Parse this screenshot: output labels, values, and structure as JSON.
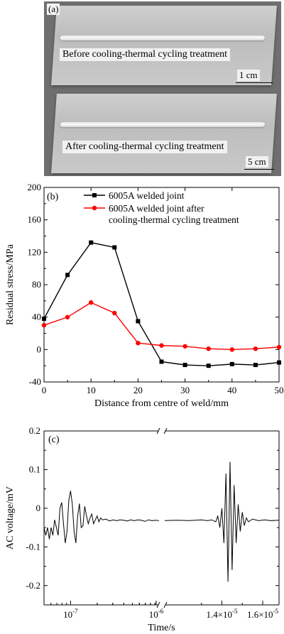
{
  "panel_a": {
    "label": "(a)",
    "top_caption": "Before cooling-thermal cycling treatment",
    "top_scale": "1 cm",
    "bottom_caption": "After cooling-thermal cycling treatment",
    "bottom_scale": "5 cm"
  },
  "chart_data": [
    {
      "type": "line",
      "panel_label": "(b)",
      "xlabel": "Distance from centre of weld/mm",
      "ylabel": "Residual stress/MPa",
      "xlim": [
        0,
        50
      ],
      "ylim": [
        -40,
        200
      ],
      "x_ticks": [
        0,
        10,
        20,
        30,
        40,
        50
      ],
      "y_ticks": [
        -40,
        0,
        40,
        80,
        120,
        160,
        200
      ],
      "legend_position": "top-right",
      "grid": false,
      "series": [
        {
          "name": "6005A welded joint",
          "color": "#000000",
          "marker": "square",
          "x": [
            0,
            5,
            10,
            15,
            20,
            25,
            30,
            35,
            40,
            45,
            50
          ],
          "y": [
            38,
            92,
            132,
            126,
            35,
            -15,
            -19,
            -20,
            -18,
            -19,
            -16
          ]
        },
        {
          "name": "6005A welded joint after cooling-thermal cycling treatment",
          "legend_lines": [
            "6005A welded joint after",
            "cooling-thermal cycling treatment"
          ],
          "color": "#ff0000",
          "marker": "circle",
          "x": [
            0,
            5,
            10,
            15,
            20,
            25,
            30,
            35,
            40,
            45,
            50
          ],
          "y": [
            30,
            40,
            58,
            45,
            8,
            5,
            4,
            1,
            0,
            1,
            3
          ]
        }
      ]
    },
    {
      "type": "line",
      "panel_label": "(c)",
      "xlabel": "Time/s",
      "ylabel": "AC voltage/mV",
      "ylim": [
        -0.25,
        0.2
      ],
      "y_ticks": [
        -0.2,
        -0.1,
        0,
        0.1,
        0.2
      ],
      "y_tick_labels": [
        "-0.2",
        "-0.1",
        "0",
        "0.1",
        "0.2"
      ],
      "broken_x_axis": true,
      "x_tick_labels": [
        {
          "base": "10",
          "exp": "-7"
        },
        {
          "base": "10",
          "exp": "-6"
        },
        {
          "base": "1.4×10",
          "exp": "-5"
        },
        {
          "base": "1.6×10",
          "exp": "-5"
        }
      ],
      "segment_1_log_exponent_range": [
        -7.3,
        -6.0
      ],
      "segment_2_range": [
        1.12e-05,
        1.68e-05
      ],
      "waveform_1": [
        [
          -7.3,
          -0.05
        ],
        [
          -7.28,
          -0.07
        ],
        [
          -7.26,
          -0.05
        ],
        [
          -7.24,
          -0.08
        ],
        [
          -7.22,
          -0.05
        ],
        [
          -7.2,
          -0.07
        ],
        [
          -7.18,
          -0.03
        ],
        [
          -7.16,
          -0.05
        ],
        [
          -7.14,
          -0.07
        ],
        [
          -7.12,
          0.0
        ],
        [
          -7.1,
          0.015
        ],
        [
          -7.08,
          -0.04
        ],
        [
          -7.06,
          -0.09
        ],
        [
          -7.04,
          -0.06
        ],
        [
          -7.02,
          0.02
        ],
        [
          -7.0,
          0.045
        ],
        [
          -6.98,
          0.01
        ],
        [
          -6.96,
          -0.06
        ],
        [
          -6.94,
          -0.09
        ],
        [
          -6.92,
          -0.02
        ],
        [
          -6.9,
          0.012
        ],
        [
          -6.88,
          -0.05
        ],
        [
          -6.86,
          -0.045
        ],
        [
          -6.84,
          0.005
        ],
        [
          -6.82,
          -0.02
        ],
        [
          -6.8,
          -0.04
        ],
        [
          -6.78,
          -0.025
        ],
        [
          -6.76,
          -0.015
        ],
        [
          -6.74,
          -0.04
        ],
        [
          -6.72,
          -0.03
        ],
        [
          -6.7,
          -0.02
        ],
        [
          -6.68,
          -0.035
        ],
        [
          -6.66,
          -0.025
        ],
        [
          -6.64,
          -0.03
        ],
        [
          -6.6,
          -0.028
        ],
        [
          -6.56,
          -0.033
        ],
        [
          -6.52,
          -0.03
        ],
        [
          -6.48,
          -0.032
        ],
        [
          -6.44,
          -0.03
        ],
        [
          -6.4,
          -0.031
        ],
        [
          -6.36,
          -0.033
        ],
        [
          -6.32,
          -0.03
        ],
        [
          -6.28,
          -0.032
        ],
        [
          -6.24,
          -0.03
        ],
        [
          -6.2,
          -0.031
        ],
        [
          -6.16,
          -0.034
        ],
        [
          -6.12,
          -0.03
        ],
        [
          -6.08,
          -0.032
        ],
        [
          -6.04,
          -0.031
        ],
        [
          -6.0,
          -0.032
        ]
      ],
      "waveform_2": [
        [
          1.12e-05,
          -0.032
        ],
        [
          1.18e-05,
          -0.031
        ],
        [
          1.24e-05,
          -0.032
        ],
        [
          1.3e-05,
          -0.03
        ],
        [
          1.33e-05,
          -0.032
        ],
        [
          1.35e-05,
          -0.03
        ],
        [
          1.37e-05,
          -0.035
        ],
        [
          1.38e-05,
          -0.02
        ],
        [
          1.39e-05,
          -0.05
        ],
        [
          1.4e-05,
          0.0
        ],
        [
          1.41e-05,
          -0.09
        ],
        [
          1.42e-05,
          0.09
        ],
        [
          1.43e-05,
          -0.19
        ],
        [
          1.44e-05,
          0.12
        ],
        [
          1.45e-05,
          -0.16
        ],
        [
          1.46e-05,
          0.06
        ],
        [
          1.47e-05,
          -0.09
        ],
        [
          1.48e-05,
          0.01
        ],
        [
          1.49e-05,
          -0.06
        ],
        [
          1.5e-05,
          -0.01
        ],
        [
          1.51e-05,
          -0.045
        ],
        [
          1.52e-05,
          -0.025
        ],
        [
          1.53e-05,
          -0.035
        ],
        [
          1.55e-05,
          -0.028
        ],
        [
          1.58e-05,
          -0.032
        ],
        [
          1.61e-05,
          -0.03
        ],
        [
          1.64e-05,
          -0.032
        ],
        [
          1.68e-05,
          -0.031
        ]
      ]
    }
  ]
}
